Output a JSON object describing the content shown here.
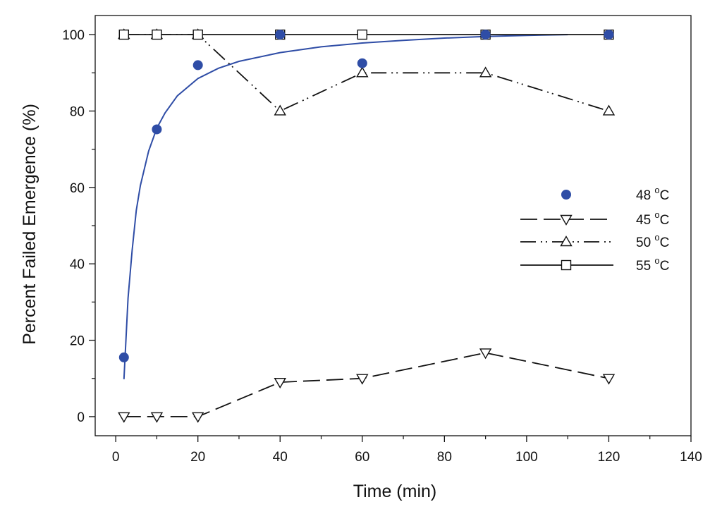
{
  "chart_data": {
    "type": "line",
    "title": "",
    "xlabel": "Time (min)",
    "ylabel": "Percent  Failed Emergence (%)",
    "xlim": [
      -5,
      140
    ],
    "ylim": [
      -5,
      105
    ],
    "xticks": [
      0,
      20,
      40,
      60,
      80,
      100,
      120,
      140
    ],
    "yticks": [
      0,
      20,
      40,
      60,
      80,
      100
    ],
    "xtick_labels": [
      "0",
      "20",
      "40",
      "60",
      "80",
      "100",
      "120",
      "140"
    ],
    "ytick_labels": [
      "0",
      "20",
      "40",
      "60",
      "80",
      "100"
    ],
    "grid": false,
    "legend_position": "right",
    "series": [
      {
        "name": "48",
        "unit": "oC",
        "marker": "filled-circle",
        "line": "none",
        "color": "#2f4da6",
        "x": [
          2,
          10,
          20,
          40,
          60,
          90,
          120
        ],
        "y": [
          15.5,
          75.2,
          92,
          100,
          92.5,
          100,
          100
        ]
      },
      {
        "name": "45",
        "unit": "oC",
        "marker": "triangle-down",
        "line": "long-dash",
        "color": "#111111",
        "x": [
          2,
          10,
          20,
          40,
          60,
          90,
          120
        ],
        "y": [
          0,
          0,
          0,
          9,
          10,
          16.7,
          10
        ]
      },
      {
        "name": "50",
        "unit": "oC",
        "marker": "triangle-up",
        "line": "dash-dot-dot",
        "color": "#111111",
        "x": [
          2,
          10,
          20,
          40,
          60,
          90,
          120
        ],
        "y": [
          100,
          100,
          100,
          80,
          90,
          90,
          80
        ]
      },
      {
        "name": "55",
        "unit": "oC",
        "marker": "square",
        "line": "solid",
        "color": "#111111",
        "x": [
          2,
          10,
          20,
          40,
          60,
          90,
          120
        ],
        "y": [
          100,
          100,
          100,
          100,
          100,
          100,
          100
        ]
      }
    ],
    "fit_curve": {
      "series": "48",
      "color": "#2f4da6",
      "x": [
        2,
        3,
        4,
        5,
        6,
        8,
        10,
        12,
        15,
        20,
        25,
        30,
        40,
        50,
        60,
        70,
        80,
        90,
        100,
        110
      ],
      "y": [
        9.8,
        31,
        43.5,
        54,
        60.5,
        69.5,
        75.5,
        79.5,
        84,
        88.5,
        91.2,
        93,
        95.3,
        96.8,
        97.8,
        98.5,
        99.1,
        99.5,
        99.8,
        100
      ]
    }
  }
}
